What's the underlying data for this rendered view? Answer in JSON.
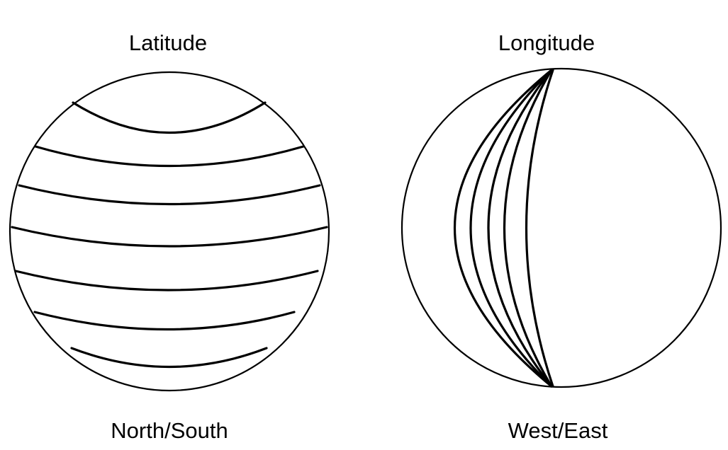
{
  "globes": [
    {
      "title": "Latitude",
      "caption": "North/South"
    },
    {
      "title": "Longitude",
      "caption": "West/East"
    }
  ],
  "colors": {
    "stroke": "#000000",
    "background": "#ffffff"
  }
}
